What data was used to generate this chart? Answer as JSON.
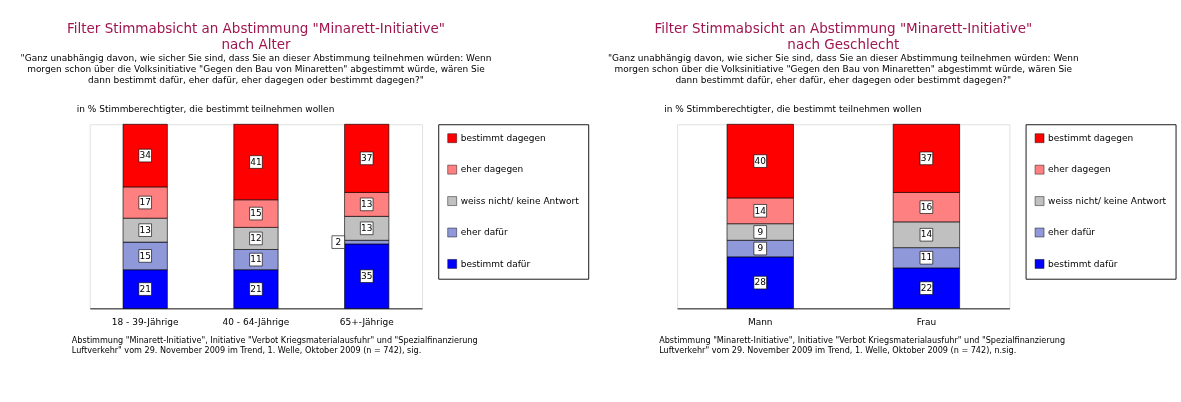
{
  "chart_data": [
    {
      "type": "bar",
      "title": "Filter Stimmabsicht an Abstimmung \"Minarett-Initiative\" nach Alter",
      "subtitle": "\"Ganz unabhängig davon, wie sicher Sie sind, dass Sie an dieser Abstimmung teilnehmen würden: Wenn morgen schon über die Volksinitiative \"Gegen den Bau von Minaretten\" abgestimmt würde, wären Sie dann bestimmt dafür, eher dafür, eher dagegen oder bestimmt dagegen?\"",
      "ylabel": "in % Stimmberechtigter, die bestimmt teilnehmen wollen",
      "categories": [
        "18 - 39-Jährige",
        "40 - 64-Jährige",
        "65+-Jährige"
      ],
      "stacked": true,
      "data_labels": true,
      "legend": "right",
      "grid": false,
      "series": [
        {
          "name": "bestimmt dafür",
          "color": "#0000ff",
          "values": [
            21,
            21,
            35
          ]
        },
        {
          "name": "eher dafür",
          "color": "#8f98d8",
          "values": [
            15,
            11,
            2
          ]
        },
        {
          "name": "weiss nicht/ keine Antwort",
          "color": "#c0c0c0",
          "values": [
            13,
            12,
            13
          ]
        },
        {
          "name": "eher dagegen",
          "color": "#ff8080",
          "values": [
            17,
            15,
            13
          ]
        },
        {
          "name": "bestimmt dagegen",
          "color": "#ff0000",
          "values": [
            34,
            41,
            37
          ]
        }
      ],
      "annotations": [
        "Abstimmung \"Minarett-Initiative\", Initiative \"Verbot Kriegsmaterialausfuhr\" und \"Spezialfinanzierung Luftverkehr\" vom 29. November 2009 im Trend, 1. Welle, Oktober 2009 (n = 742), sig."
      ]
    },
    {
      "type": "bar",
      "title": "Filter Stimmabsicht an Abstimmung \"Minarett-Initiative\" nach Geschlecht",
      "subtitle": "\"Ganz unabhängig davon, wie sicher Sie sind, dass Sie an dieser Abstimmung teilnehmen würden: Wenn morgen schon über die Volksinitiative \"Gegen den Bau von Minaretten\" abgestimmt würde, wären Sie dann bestimmt dafür, eher dafür, eher dagegen oder bestimmt dagegen?\"",
      "ylabel": "in % Stimmberechtigter, die bestimmt teilnehmen wollen",
      "categories": [
        "Mann",
        "Frau"
      ],
      "stacked": true,
      "data_labels": true,
      "legend": "right",
      "grid": false,
      "series": [
        {
          "name": "bestimmt dafür",
          "color": "#0000ff",
          "values": [
            28,
            22
          ]
        },
        {
          "name": "eher dafür",
          "color": "#8f98d8",
          "values": [
            9,
            11
          ]
        },
        {
          "name": "weiss nicht/ keine Antwort",
          "color": "#c0c0c0",
          "values": [
            9,
            14
          ]
        },
        {
          "name": "eher dagegen",
          "color": "#ff8080",
          "values": [
            14,
            16
          ]
        },
        {
          "name": "bestimmt dagegen",
          "color": "#ff0000",
          "values": [
            40,
            37
          ]
        }
      ],
      "annotations": [
        "Abstimmung \"Minarett-Initiative\", Initiative \"Verbot Kriegsmaterialausfuhr\" und \"Spezialfinanzierung Luftverkehr\" vom 29. November 2009 im Trend, 1. Welle, Oktober 2009 (n = 742), n.sig."
      ]
    }
  ]
}
